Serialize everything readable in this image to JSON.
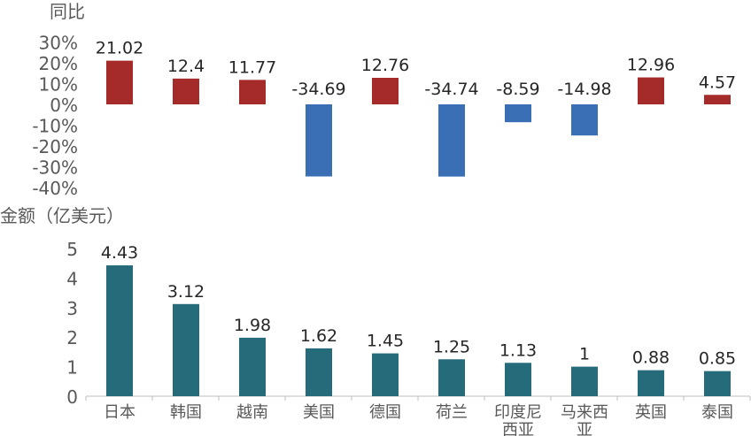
{
  "chart_data": [
    {
      "type": "bar",
      "ylabel": "同比",
      "categories": [
        "日本",
        "韩国",
        "越南",
        "美国",
        "德国",
        "荷兰",
        "印度尼西亚",
        "马来西亚",
        "英国",
        "泰国"
      ],
      "category_lines": [
        [
          "日本"
        ],
        [
          "韩国"
        ],
        [
          "越南"
        ],
        [
          "美国"
        ],
        [
          "德国"
        ],
        [
          "荷兰"
        ],
        [
          "印度尼",
          "西亚"
        ],
        [
          "马来西",
          "亚"
        ],
        [
          "英国"
        ],
        [
          "泰国"
        ]
      ],
      "values": [
        21.02,
        12.4,
        11.77,
        -34.69,
        12.76,
        -34.74,
        -8.59,
        -14.98,
        12.96,
        4.57
      ],
      "value_labels": [
        "21.02",
        "12.4",
        "11.77",
        "-34.69",
        "12.76",
        "-34.74",
        "-8.59",
        "-14.98",
        "12.96",
        "4.57"
      ],
      "ylim": [
        -40,
        30
      ],
      "yticks": [
        30,
        20,
        10,
        0,
        -10,
        -20,
        -30,
        -40
      ],
      "ytick_labels": [
        "30%",
        "20%",
        "10%",
        "0%",
        "-10%",
        "-20%",
        "-30%",
        "-40%"
      ],
      "colors": {
        "positive": "#a52a2a",
        "negative": "#3a6fb5"
      },
      "grid": false
    },
    {
      "type": "bar",
      "ylabel": "金额（亿美元）",
      "categories": [
        "日本",
        "韩国",
        "越南",
        "美国",
        "德国",
        "荷兰",
        "印度尼西亚",
        "马来西亚",
        "英国",
        "泰国"
      ],
      "values": [
        4.43,
        3.12,
        1.98,
        1.62,
        1.45,
        1.25,
        1.13,
        1,
        0.88,
        0.85
      ],
      "value_labels": [
        "4.43",
        "3.12",
        "1.98",
        "1.62",
        "1.45",
        "1.25",
        "1.13",
        "1",
        "0.88",
        "0.85"
      ],
      "ylim": [
        0,
        5
      ],
      "yticks": [
        5,
        4,
        3,
        2,
        1,
        0
      ],
      "ytick_labels": [
        "5",
        "4",
        "3",
        "2",
        "1",
        "0"
      ],
      "colors": {
        "bar": "#266b7a"
      },
      "grid": false
    }
  ]
}
